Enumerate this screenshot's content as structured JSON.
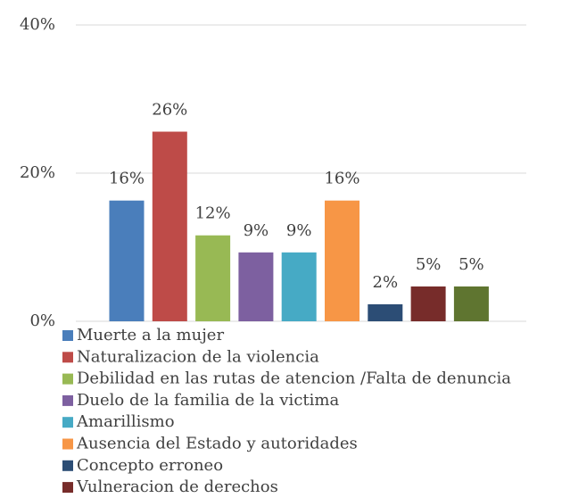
{
  "chart_data": {
    "type": "bar",
    "categories": [
      "Muerte a la mujer",
      "Naturalizacion de la violencia",
      "Debilidad en las rutas de atencion /Falta de denuncia",
      "Duelo de la familia de la victima",
      "Amarillismo",
      "Ausencia del  Estado y autoridades",
      "Concepto  erroneo",
      "Vulneracion de derechos",
      null
    ],
    "values": [
      16.3,
      25.6,
      11.6,
      9.3,
      9.3,
      16.3,
      2.3,
      4.7,
      4.7
    ],
    "value_labels": [
      "16%",
      "26%",
      "12%",
      "9%",
      "9%",
      "16%",
      "2%",
      "5%",
      "5%"
    ],
    "colors": [
      "#4a7ebb",
      "#be4b48",
      "#98b954",
      "#7d60a0",
      "#46aac5",
      "#f79646",
      "#2c4d75",
      "#772c2a",
      "#5f7530"
    ],
    "ylim": [
      0,
      40
    ],
    "yticks": [
      {
        "value": 0,
        "label": "0%"
      },
      {
        "value": 20,
        "label": "20%"
      },
      {
        "value": 40,
        "label": "40%"
      }
    ],
    "grid": true
  }
}
